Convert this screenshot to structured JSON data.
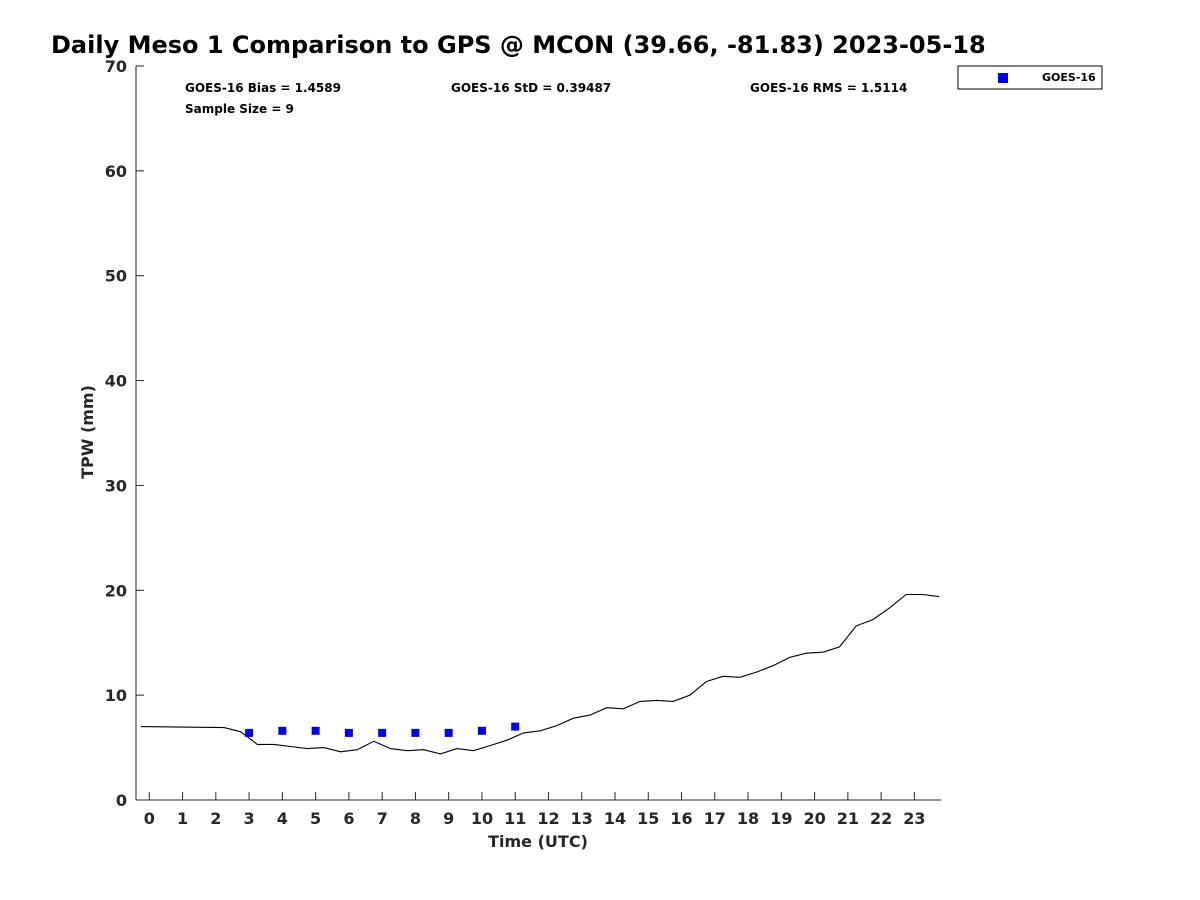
{
  "chart_data": {
    "type": "line",
    "title": "Daily Meso 1 Comparison to GPS @ MCON (39.66, -81.83) 2023-05-18",
    "xlabel": "Time (UTC)",
    "ylabel": "TPW (mm)",
    "xlim": [
      -0.4,
      23.8
    ],
    "ylim": [
      0,
      70
    ],
    "x_ticks": [
      0,
      1,
      2,
      3,
      4,
      5,
      6,
      7,
      8,
      9,
      10,
      11,
      12,
      13,
      14,
      15,
      16,
      17,
      18,
      19,
      20,
      21,
      22,
      23
    ],
    "y_ticks": [
      0,
      10,
      20,
      30,
      40,
      50,
      60,
      70
    ],
    "grid": false,
    "legend_placement": "top-right, outside plot",
    "stats": {
      "bias": "GOES-16 Bias = 1.4589",
      "std": "GOES-16 StD = 0.39487",
      "rms": "GOES-16 RMS = 1.5114",
      "sample": "Sample Size = 9"
    },
    "series": [
      {
        "kind": "line",
        "color": "#000000",
        "x": [
          -0.25,
          2.25,
          2.75,
          3.25,
          3.75,
          4.25,
          4.75,
          5.25,
          5.75,
          6.25,
          6.75,
          7.25,
          7.75,
          8.25,
          8.75,
          9.25,
          9.75,
          10.25,
          10.75,
          11.25,
          11.75,
          12.25,
          12.75,
          13.25,
          13.75,
          14.25,
          14.75,
          15.25,
          15.75,
          16.25,
          16.75,
          17.25,
          17.75,
          18.25,
          18.75,
          19.25,
          19.75,
          20.25,
          20.75,
          21.25,
          21.75,
          22.25,
          22.75,
          23.25,
          23.75
        ],
        "values": [
          7.0,
          6.9,
          6.5,
          5.3,
          5.3,
          5.1,
          4.9,
          5.0,
          4.6,
          4.8,
          5.6,
          4.9,
          4.7,
          4.8,
          4.4,
          4.9,
          4.7,
          5.2,
          5.7,
          6.4,
          6.6,
          7.1,
          7.8,
          8.1,
          8.8,
          8.7,
          9.4,
          9.5,
          9.4,
          10.0,
          11.3,
          11.8,
          11.7,
          12.2,
          12.8,
          13.6,
          14.0,
          14.1,
          14.6,
          16.6,
          17.2,
          18.3,
          19.6,
          19.6,
          19.4
        ]
      },
      {
        "name": "GOES-16",
        "kind": "scatter",
        "marker": "square",
        "color": "#0000e6",
        "x": [
          3,
          4,
          5,
          6,
          7,
          8,
          9,
          10,
          11
        ],
        "values": [
          6.4,
          6.6,
          6.6,
          6.4,
          6.4,
          6.4,
          6.4,
          6.6,
          7.0
        ]
      }
    ]
  }
}
